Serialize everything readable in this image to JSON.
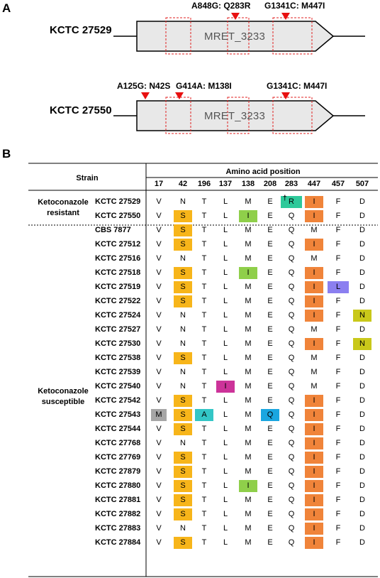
{
  "panel_a": {
    "label": "A",
    "genes": [
      {
        "strain": "KCTC 27529",
        "gene": "MRET_3233",
        "mutations": [
          "A848G: Q283R",
          "G1341C: M447I"
        ]
      },
      {
        "strain": "KCTC 27550",
        "gene": "MRET_3233",
        "mutations": [
          "A125G: N42S",
          "G414A: M138I",
          "G1341C: M447I"
        ]
      }
    ]
  },
  "panel_b": {
    "label": "B",
    "header_strain": "Strain",
    "header_positions": "Amino acid position",
    "positions": [
      "17",
      "42",
      "196",
      "137",
      "138",
      "208",
      "283",
      "447",
      "457",
      "507"
    ],
    "groups": [
      {
        "label": "Ketoconazole\nresistant"
      },
      {
        "label": "Ketoconazole\nsusceptible"
      }
    ],
    "dagger": "†",
    "rows": [
      {
        "name": "KCTC 27529",
        "res": [
          "V",
          "N",
          "T",
          "L",
          "M",
          "E",
          "R",
          "I",
          "F",
          "D"
        ]
      },
      {
        "name": "KCTC 27550",
        "res": [
          "V",
          "S",
          "T",
          "L",
          "I",
          "E",
          "Q",
          "I",
          "F",
          "D"
        ]
      },
      {
        "name": "CBS 7877",
        "res": [
          "V",
          "S",
          "T",
          "L",
          "M",
          "E",
          "Q",
          "M",
          "F",
          "D"
        ]
      },
      {
        "name": "KCTC 27512",
        "res": [
          "V",
          "S",
          "T",
          "L",
          "M",
          "E",
          "Q",
          "I",
          "F",
          "D"
        ]
      },
      {
        "name": "KCTC 27516",
        "res": [
          "V",
          "N",
          "T",
          "L",
          "M",
          "E",
          "Q",
          "M",
          "F",
          "D"
        ]
      },
      {
        "name": "KCTC 27518",
        "res": [
          "V",
          "S",
          "T",
          "L",
          "I",
          "E",
          "Q",
          "I",
          "F",
          "D"
        ]
      },
      {
        "name": "KCTC 27519",
        "res": [
          "V",
          "S",
          "T",
          "L",
          "M",
          "E",
          "Q",
          "I",
          "L",
          "D"
        ]
      },
      {
        "name": "KCTC 27522",
        "res": [
          "V",
          "S",
          "T",
          "L",
          "M",
          "E",
          "Q",
          "I",
          "F",
          "D"
        ]
      },
      {
        "name": "KCTC 27524",
        "res": [
          "V",
          "N",
          "T",
          "L",
          "M",
          "E",
          "Q",
          "I",
          "F",
          "N"
        ]
      },
      {
        "name": "KCTC 27527",
        "res": [
          "V",
          "N",
          "T",
          "L",
          "M",
          "E",
          "Q",
          "M",
          "F",
          "D"
        ]
      },
      {
        "name": "KCTC 27530",
        "res": [
          "V",
          "N",
          "T",
          "L",
          "M",
          "E",
          "Q",
          "I",
          "F",
          "N"
        ]
      },
      {
        "name": "KCTC 27538",
        "res": [
          "V",
          "S",
          "T",
          "L",
          "M",
          "E",
          "Q",
          "M",
          "F",
          "D"
        ]
      },
      {
        "name": "KCTC 27539",
        "res": [
          "V",
          "N",
          "T",
          "L",
          "M",
          "E",
          "Q",
          "M",
          "F",
          "D"
        ]
      },
      {
        "name": "KCTC 27540",
        "res": [
          "V",
          "N",
          "T",
          "I",
          "M",
          "E",
          "Q",
          "M",
          "F",
          "D"
        ]
      },
      {
        "name": "KCTC 27542",
        "res": [
          "V",
          "S",
          "T",
          "L",
          "M",
          "E",
          "Q",
          "I",
          "F",
          "D"
        ]
      },
      {
        "name": "KCTC 27543",
        "res": [
          "M",
          "S",
          "A",
          "L",
          "M",
          "Q",
          "Q",
          "I",
          "F",
          "D"
        ]
      },
      {
        "name": "KCTC 27544",
        "res": [
          "V",
          "S",
          "T",
          "L",
          "M",
          "E",
          "Q",
          "I",
          "F",
          "D"
        ]
      },
      {
        "name": "KCTC 27768",
        "res": [
          "V",
          "N",
          "T",
          "L",
          "M",
          "E",
          "Q",
          "I",
          "F",
          "D"
        ]
      },
      {
        "name": "KCTC 27769",
        "res": [
          "V",
          "S",
          "T",
          "L",
          "M",
          "E",
          "Q",
          "I",
          "F",
          "D"
        ]
      },
      {
        "name": "KCTC 27879",
        "res": [
          "V",
          "S",
          "T",
          "L",
          "M",
          "E",
          "Q",
          "I",
          "F",
          "D"
        ]
      },
      {
        "name": "KCTC 27880",
        "res": [
          "V",
          "S",
          "T",
          "L",
          "I",
          "E",
          "Q",
          "I",
          "F",
          "D"
        ]
      },
      {
        "name": "KCTC 27881",
        "res": [
          "V",
          "S",
          "T",
          "L",
          "M",
          "E",
          "Q",
          "I",
          "F",
          "D"
        ]
      },
      {
        "name": "KCTC 27882",
        "res": [
          "V",
          "S",
          "T",
          "L",
          "M",
          "E",
          "Q",
          "I",
          "F",
          "D"
        ]
      },
      {
        "name": "KCTC 27883",
        "res": [
          "V",
          "N",
          "T",
          "L",
          "M",
          "E",
          "Q",
          "I",
          "F",
          "D"
        ]
      },
      {
        "name": "KCTC 27884",
        "res": [
          "V",
          "S",
          "T",
          "L",
          "M",
          "E",
          "Q",
          "I",
          "F",
          "D"
        ]
      }
    ],
    "highlights": [
      {
        "row": 0,
        "col": 6,
        "color": "#2ec99a"
      },
      {
        "row": 0,
        "col": 7,
        "color": "#f0843a"
      },
      {
        "row": 1,
        "col": 1,
        "color": "#f7b51a"
      },
      {
        "row": 1,
        "col": 4,
        "color": "#8fcf4a"
      },
      {
        "row": 1,
        "col": 7,
        "color": "#f0843a"
      },
      {
        "row": 2,
        "col": 1,
        "color": "#f7b51a"
      },
      {
        "row": 3,
        "col": 1,
        "color": "#f7b51a"
      },
      {
        "row": 3,
        "col": 7,
        "color": "#f0843a"
      },
      {
        "row": 5,
        "col": 1,
        "color": "#f7b51a"
      },
      {
        "row": 5,
        "col": 4,
        "color": "#8fcf4a"
      },
      {
        "row": 5,
        "col": 7,
        "color": "#f0843a"
      },
      {
        "row": 6,
        "col": 1,
        "color": "#f7b51a"
      },
      {
        "row": 6,
        "col": 7,
        "color": "#f0843a"
      },
      {
        "row": 6,
        "col": 8,
        "color": "#8b7ff0"
      },
      {
        "row": 7,
        "col": 1,
        "color": "#f7b51a"
      },
      {
        "row": 7,
        "col": 7,
        "color": "#f0843a"
      },
      {
        "row": 8,
        "col": 7,
        "color": "#f0843a"
      },
      {
        "row": 8,
        "col": 9,
        "color": "#c9c81a"
      },
      {
        "row": 10,
        "col": 7,
        "color": "#f0843a"
      },
      {
        "row": 10,
        "col": 9,
        "color": "#c9c81a"
      },
      {
        "row": 11,
        "col": 1,
        "color": "#f7b51a"
      },
      {
        "row": 13,
        "col": 3,
        "color": "#cc3399"
      },
      {
        "row": 14,
        "col": 1,
        "color": "#f7b51a"
      },
      {
        "row": 14,
        "col": 7,
        "color": "#f0843a"
      },
      {
        "row": 15,
        "col": 0,
        "color": "#a6a6a6"
      },
      {
        "row": 15,
        "col": 1,
        "color": "#f7b51a"
      },
      {
        "row": 15,
        "col": 2,
        "color": "#33c6c6"
      },
      {
        "row": 15,
        "col": 5,
        "color": "#1aa6e0"
      },
      {
        "row": 15,
        "col": 7,
        "color": "#f0843a"
      },
      {
        "row": 16,
        "col": 1,
        "color": "#f7b51a"
      },
      {
        "row": 16,
        "col": 7,
        "color": "#f0843a"
      },
      {
        "row": 17,
        "col": 7,
        "color": "#f0843a"
      },
      {
        "row": 18,
        "col": 1,
        "color": "#f7b51a"
      },
      {
        "row": 18,
        "col": 7,
        "color": "#f0843a"
      },
      {
        "row": 19,
        "col": 1,
        "color": "#f7b51a"
      },
      {
        "row": 19,
        "col": 7,
        "color": "#f0843a"
      },
      {
        "row": 20,
        "col": 1,
        "color": "#f7b51a"
      },
      {
        "row": 20,
        "col": 4,
        "color": "#8fcf4a"
      },
      {
        "row": 20,
        "col": 7,
        "color": "#f0843a"
      },
      {
        "row": 21,
        "col": 1,
        "color": "#f7b51a"
      },
      {
        "row": 21,
        "col": 7,
        "color": "#f0843a"
      },
      {
        "row": 22,
        "col": 1,
        "color": "#f7b51a"
      },
      {
        "row": 22,
        "col": 7,
        "color": "#f0843a"
      },
      {
        "row": 23,
        "col": 7,
        "color": "#f0843a"
      },
      {
        "row": 24,
        "col": 1,
        "color": "#f7b51a"
      },
      {
        "row": 24,
        "col": 7,
        "color": "#f0843a"
      }
    ]
  }
}
